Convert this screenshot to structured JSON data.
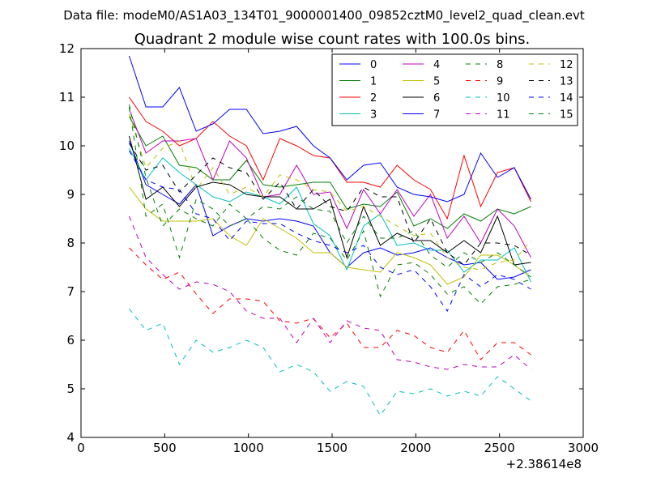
{
  "chart_data": {
    "type": "line",
    "suptitle": "Data file: modeM0/AS1A03_134T01_9000001400_09852cztM0_level2_quad_clean.evt",
    "title": "Quadrant 2 module wise count rates with 100.0s bins.",
    "xlabel": "",
    "ylabel": "",
    "x_offset_label": "+2.38614e8",
    "xlim": [
      0,
      3000
    ],
    "ylim": [
      4,
      12
    ],
    "x_ticks": [
      0,
      500,
      1000,
      1500,
      2000,
      2500,
      3000
    ],
    "y_ticks": [
      4,
      5,
      6,
      7,
      8,
      9,
      10,
      11,
      12
    ],
    "grid": false,
    "legend_position": "top-right",
    "legend_columns": 4,
    "x": [
      288,
      388,
      488,
      588,
      688,
      788,
      888,
      988,
      1088,
      1188,
      1288,
      1388,
      1488,
      1588,
      1688,
      1788,
      1888,
      1988,
      2088,
      2188,
      2288,
      2388,
      2488,
      2588,
      2688
    ],
    "series": [
      {
        "name": "0",
        "color": "#0000ff",
        "dash": "solid",
        "values": [
          10.1,
          9.2,
          9.0,
          8.8,
          9.2,
          8.15,
          8.35,
          8.5,
          8.45,
          8.5,
          8.45,
          8.35,
          7.8,
          7.5,
          7.8,
          7.9,
          7.75,
          7.8,
          7.9,
          7.7,
          7.55,
          7.6,
          7.25,
          7.3,
          7.45
        ]
      },
      {
        "name": "1",
        "color": "#008000",
        "dash": "solid",
        "values": [
          10.6,
          10.0,
          10.2,
          9.6,
          9.55,
          9.3,
          9.3,
          9.7,
          9.2,
          9.15,
          9.2,
          9.25,
          9.25,
          8.7,
          8.8,
          8.75,
          9.05,
          8.35,
          8.5,
          8.3,
          8.6,
          8.45,
          8.7,
          8.6,
          8.75
        ]
      },
      {
        "name": "2",
        "color": "#ff0000",
        "dash": "solid",
        "values": [
          11.0,
          10.5,
          10.3,
          10.0,
          10.15,
          10.5,
          10.2,
          10.0,
          9.3,
          10.15,
          10.0,
          9.8,
          9.75,
          9.25,
          9.25,
          9.15,
          9.6,
          9.3,
          9.1,
          8.5,
          9.8,
          8.75,
          9.45,
          9.55,
          8.85
        ]
      },
      {
        "name": "3",
        "color": "#00bfbf",
        "dash": "solid",
        "values": [
          9.95,
          9.3,
          9.75,
          9.45,
          9.2,
          8.95,
          8.85,
          9.05,
          8.95,
          8.8,
          9.15,
          8.4,
          8.15,
          7.45,
          8.35,
          8.6,
          7.95,
          8.0,
          7.85,
          7.85,
          7.4,
          7.65,
          7.65,
          7.9,
          7.2
        ]
      },
      {
        "name": "4",
        "color": "#bf00bf",
        "dash": "solid",
        "values": [
          10.75,
          9.85,
          10.1,
          10.1,
          10.15,
          9.3,
          10.1,
          9.75,
          8.95,
          9.0,
          9.6,
          9.0,
          9.05,
          8.3,
          9.1,
          8.6,
          9.1,
          8.55,
          9.0,
          8.1,
          8.55,
          8.0,
          8.7,
          8.35,
          7.7
        ]
      },
      {
        "name": "5",
        "color": "#bfbf00",
        "dash": "solid",
        "values": [
          9.15,
          8.7,
          8.45,
          8.45,
          8.45,
          8.5,
          8.15,
          7.95,
          8.5,
          8.3,
          8.1,
          7.8,
          7.8,
          7.5,
          7.45,
          7.4,
          7.8,
          7.7,
          7.55,
          7.15,
          7.3,
          7.75,
          7.75,
          7.55,
          7.3
        ]
      },
      {
        "name": "6",
        "color": "#000000",
        "dash": "solid",
        "values": [
          10.2,
          8.9,
          9.15,
          8.75,
          9.15,
          9.25,
          9.2,
          9.0,
          8.95,
          8.95,
          8.7,
          8.7,
          8.9,
          7.7,
          8.75,
          7.95,
          8.2,
          8.05,
          8.05,
          7.8,
          8.05,
          7.8,
          8.55,
          7.55,
          7.6
        ]
      },
      {
        "name": "7",
        "color": "#0000ff",
        "dash": "solid",
        "values": [
          11.85,
          10.8,
          10.8,
          11.2,
          10.3,
          10.45,
          10.75,
          10.75,
          10.25,
          10.3,
          10.4,
          10.0,
          9.75,
          9.3,
          9.6,
          9.65,
          9.15,
          9.0,
          8.95,
          8.85,
          9.0,
          9.85,
          9.35,
          9.55,
          8.9
        ]
      },
      {
        "name": "8",
        "color": "#008000",
        "dash": "dashed",
        "values": [
          10.8,
          8.55,
          8.8,
          7.7,
          8.9,
          8.7,
          8.35,
          8.5,
          8.1,
          7.85,
          7.75,
          8.2,
          8.1,
          7.65,
          8.25,
          6.9,
          7.55,
          7.6,
          7.35,
          6.95,
          7.1,
          6.75,
          7.1,
          7.15,
          7.25
        ]
      },
      {
        "name": "9",
        "color": "#ff0000",
        "dash": "dashed",
        "values": [
          7.9,
          7.55,
          7.25,
          7.4,
          6.95,
          6.55,
          6.85,
          6.85,
          6.8,
          6.4,
          6.35,
          6.45,
          6.05,
          6.35,
          5.85,
          5.85,
          6.2,
          6.1,
          5.85,
          5.75,
          6.2,
          5.6,
          5.95,
          5.95,
          5.7
        ]
      },
      {
        "name": "10",
        "color": "#00bfbf",
        "dash": "dashed",
        "values": [
          6.65,
          6.2,
          6.35,
          5.5,
          6.0,
          5.75,
          5.85,
          6.0,
          5.85,
          5.35,
          5.5,
          5.35,
          4.95,
          5.15,
          5.05,
          4.45,
          4.95,
          4.9,
          5.0,
          4.85,
          4.95,
          4.85,
          5.25,
          5.0,
          4.75
        ]
      },
      {
        "name": "11",
        "color": "#bf00bf",
        "dash": "dashed",
        "values": [
          8.55,
          7.7,
          7.35,
          7.05,
          7.2,
          7.15,
          7.0,
          6.6,
          6.45,
          6.45,
          5.95,
          6.45,
          5.95,
          6.4,
          6.25,
          6.2,
          5.6,
          5.55,
          5.45,
          5.4,
          5.5,
          5.45,
          5.45,
          5.7,
          5.4
        ]
      },
      {
        "name": "12",
        "color": "#bfbf00",
        "dash": "dashed",
        "values": [
          10.65,
          9.55,
          9.95,
          10.1,
          9.1,
          9.55,
          9.0,
          9.15,
          8.95,
          9.4,
          9.3,
          9.1,
          9.05,
          8.65,
          8.75,
          8.55,
          8.35,
          8.15,
          8.2,
          7.7,
          7.5,
          7.45,
          7.6,
          7.65,
          8.05
        ]
      },
      {
        "name": "13",
        "color": "#000000",
        "dash": "dashed",
        "values": [
          10.05,
          9.5,
          9.6,
          9.05,
          9.4,
          9.75,
          9.55,
          9.45,
          8.9,
          9.25,
          8.7,
          9.1,
          8.75,
          8.65,
          9.15,
          8.95,
          8.95,
          8.0,
          8.5,
          7.8,
          7.55,
          8.0,
          8.0,
          7.95,
          7.75
        ]
      },
      {
        "name": "14",
        "color": "#0000ff",
        "dash": "dashed",
        "values": [
          9.9,
          9.3,
          9.15,
          9.1,
          8.6,
          8.5,
          8.05,
          8.45,
          8.4,
          8.4,
          8.2,
          8.05,
          7.95,
          7.8,
          7.95,
          7.5,
          7.35,
          7.45,
          7.1,
          6.6,
          7.35,
          7.1,
          7.35,
          7.25,
          7.05
        ]
      },
      {
        "name": "15",
        "color": "#008000",
        "dash": "dashed",
        "values": [
          10.85,
          9.35,
          8.35,
          8.7,
          8.5,
          8.35,
          8.8,
          8.5,
          8.75,
          8.7,
          8.95,
          8.7,
          8.65,
          8.0,
          8.55,
          8.1,
          8.1,
          8.25,
          7.75,
          7.5,
          7.8,
          7.6,
          7.8,
          7.55,
          7.3
        ]
      }
    ]
  }
}
